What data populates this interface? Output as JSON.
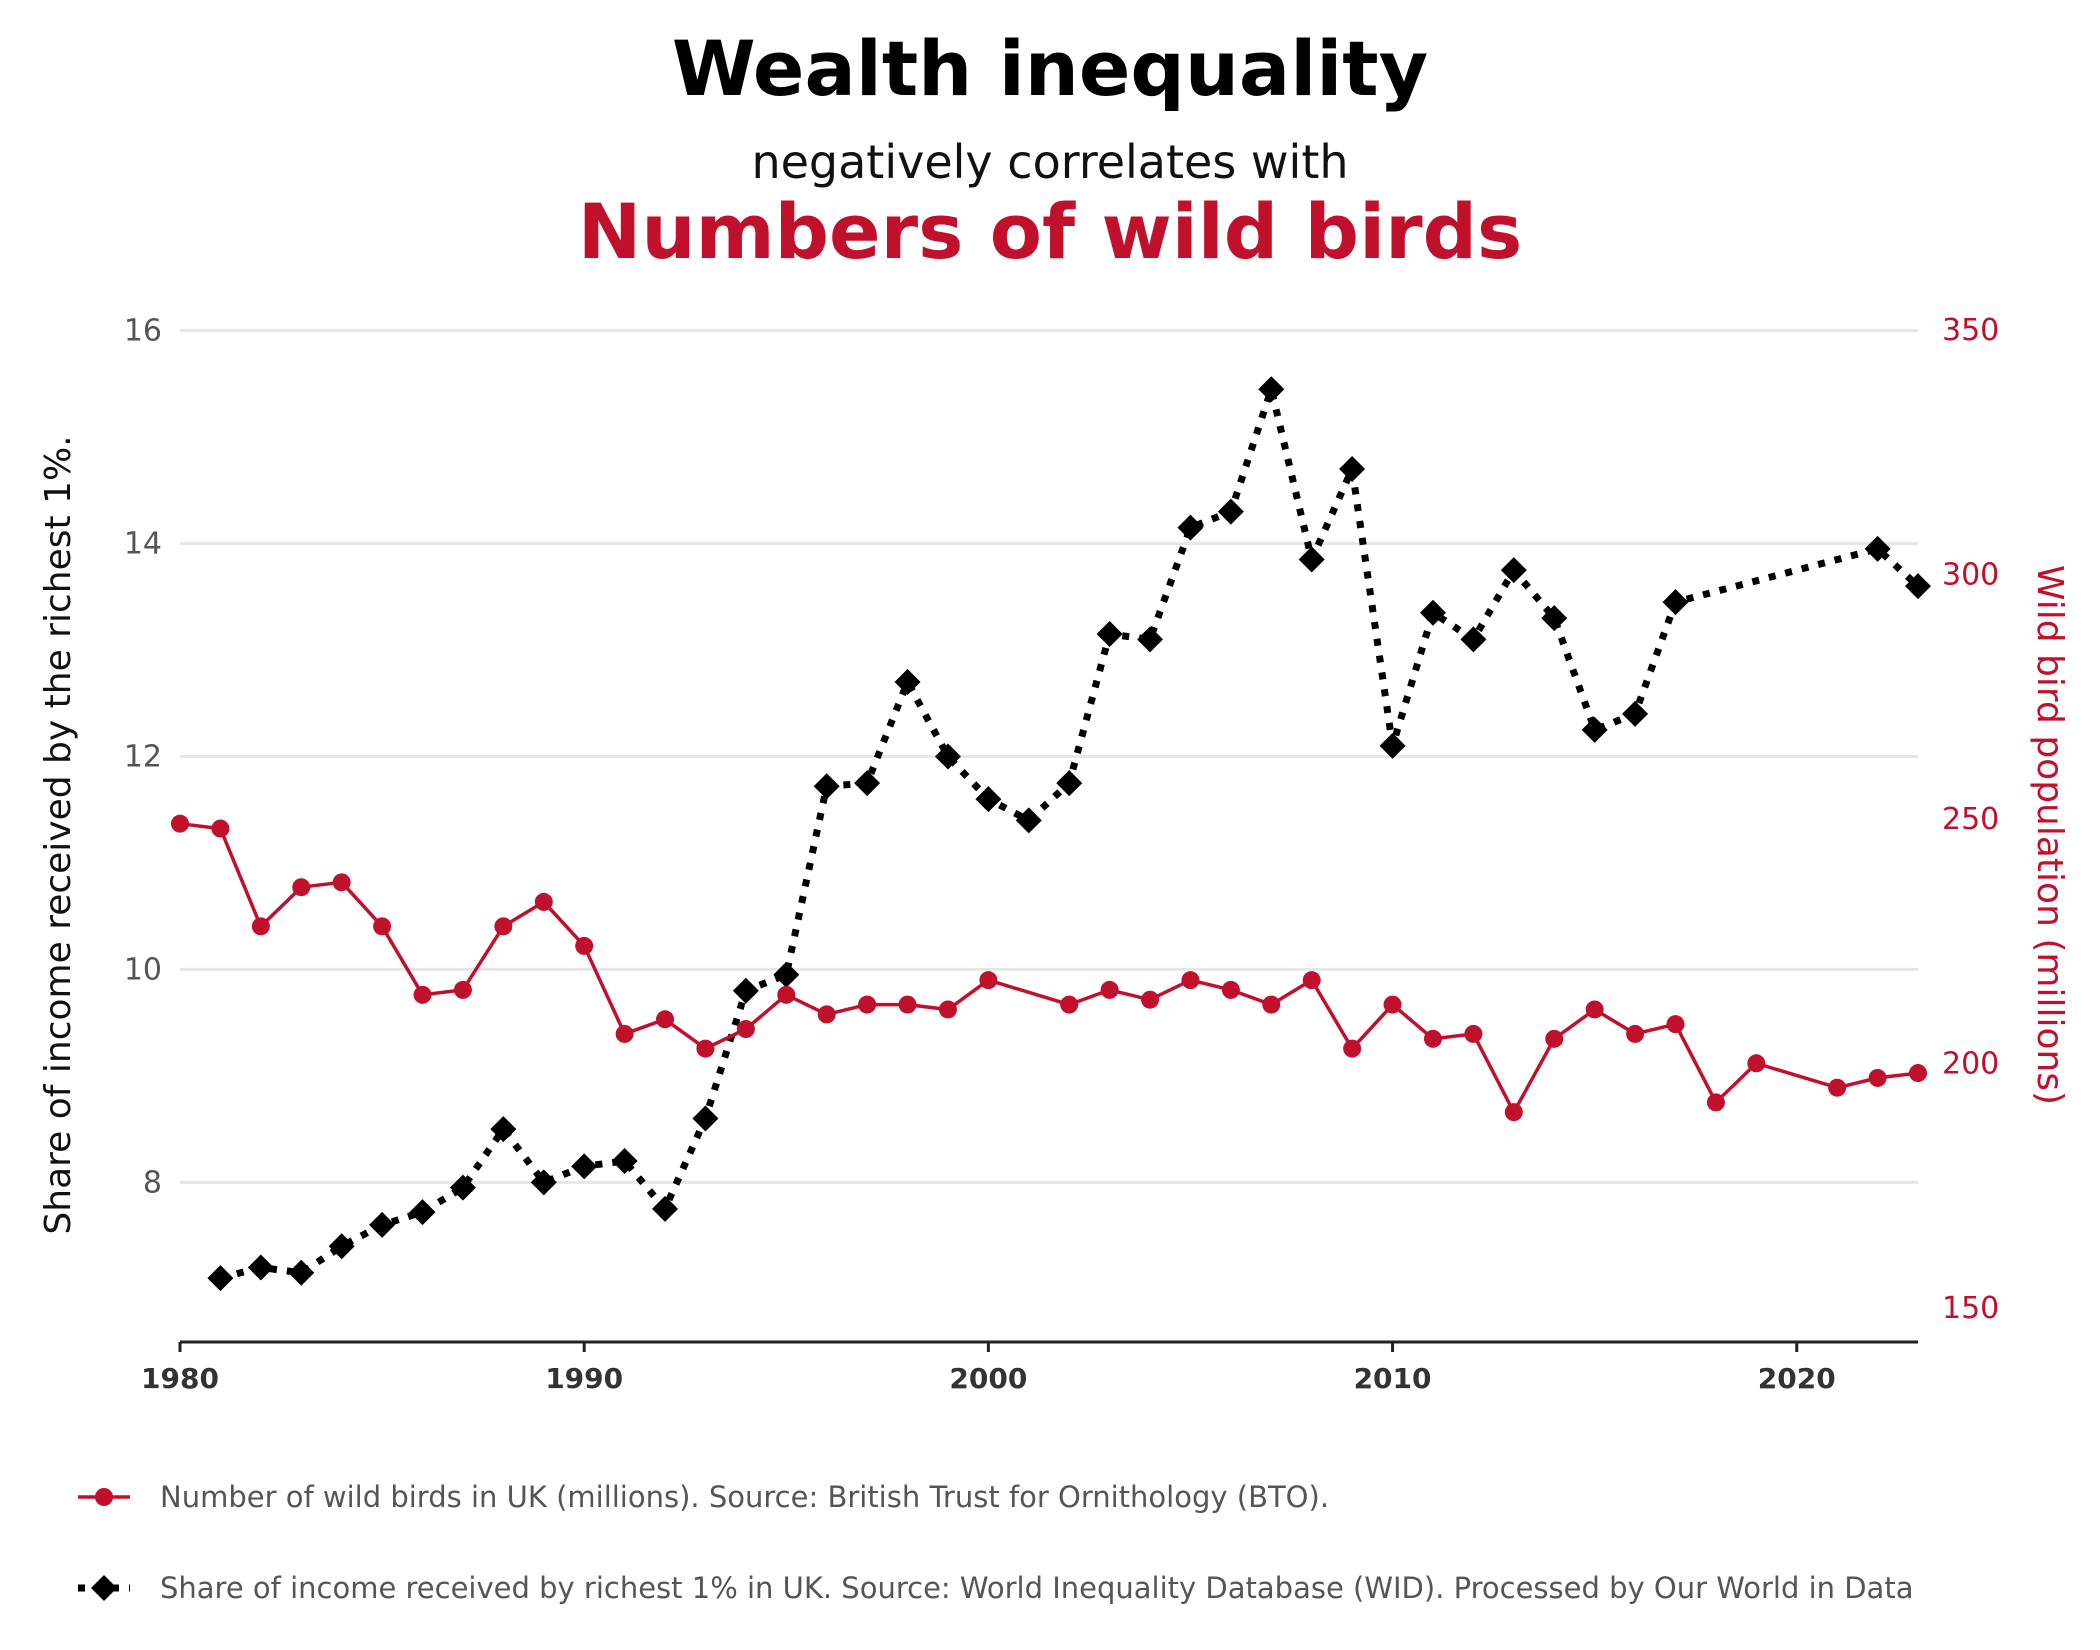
{
  "title": "Wealth inequality",
  "subtitle": "negatively correlates with",
  "subtitle2": "Numbers of wild birds",
  "colors": {
    "red": "#c0102c",
    "black": "#000000",
    "grid": "#e6e6e6"
  },
  "chart_data": {
    "type": "line",
    "xlim": [
      1980,
      2023
    ],
    "x_ticks": [
      "1980",
      "1990",
      "2000",
      "2010",
      "2020"
    ],
    "y_left": {
      "label": "Share of income received by the richest 1%.",
      "range": [
        6.5,
        16.1
      ],
      "ticks": [
        "8",
        "10",
        "12",
        "14",
        "16"
      ]
    },
    "y_right": {
      "label": "Wild bird population (millions)",
      "range": [
        143,
        352
      ],
      "ticks": [
        "150",
        "200",
        "250",
        "300",
        "350"
      ]
    },
    "grid": true,
    "legend_position": "bottom-left",
    "series": [
      {
        "name": "Number of wild birds in UK (millions). Source: British Trust for Ornithology (BTO).",
        "axis": "right",
        "style": "solid-circle",
        "color": "#c0102c",
        "x": [
          1980,
          1981,
          1982,
          1983,
          1984,
          1985,
          1986,
          1987,
          1988,
          1989,
          1990,
          1991,
          1992,
          1993,
          1994,
          1995,
          1996,
          1997,
          1998,
          1999,
          2000,
          2002,
          2003,
          2004,
          2005,
          2006,
          2007,
          2008,
          2009,
          2010,
          2011,
          2012,
          2013,
          2014,
          2015,
          2016,
          2017,
          2018,
          2019,
          2021,
          2022,
          2023
        ],
        "y": [
          249,
          248,
          228,
          236,
          237,
          228,
          214,
          215,
          228,
          233,
          224,
          206,
          209,
          203,
          207,
          214,
          210,
          212,
          212,
          211,
          217,
          212,
          215,
          213,
          217,
          215,
          212,
          217,
          203,
          212,
          205,
          206,
          190,
          205,
          211,
          206,
          208,
          192,
          200,
          195,
          197,
          198
        ]
      },
      {
        "name": "Share of income received by richest 1% in UK. Source: World Inequality Database (WID). Processed by Our World in Data",
        "axis": "left",
        "style": "dotted-diamond",
        "color": "#000000",
        "x": [
          1981,
          1982,
          1983,
          1984,
          1985,
          1986,
          1987,
          1988,
          1989,
          1990,
          1991,
          1992,
          1993,
          1994,
          1995,
          1996,
          1997,
          1998,
          1999,
          2000,
          2001,
          2002,
          2003,
          2004,
          2005,
          2006,
          2007,
          2008,
          2009,
          2010,
          2011,
          2012,
          2013,
          2014,
          2015,
          2016,
          2017,
          2022,
          2023
        ],
        "y": [
          7.1,
          7.2,
          7.15,
          7.4,
          7.6,
          7.72,
          7.95,
          8.5,
          8.0,
          8.15,
          8.2,
          7.75,
          8.6,
          9.8,
          9.95,
          11.72,
          11.75,
          12.7,
          12.0,
          11.6,
          11.4,
          11.75,
          13.15,
          13.1,
          14.15,
          14.3,
          15.45,
          13.85,
          14.7,
          12.1,
          13.35,
          13.1,
          13.75,
          13.3,
          12.25,
          12.4,
          13.45,
          13.95,
          13.6
        ]
      }
    ]
  }
}
